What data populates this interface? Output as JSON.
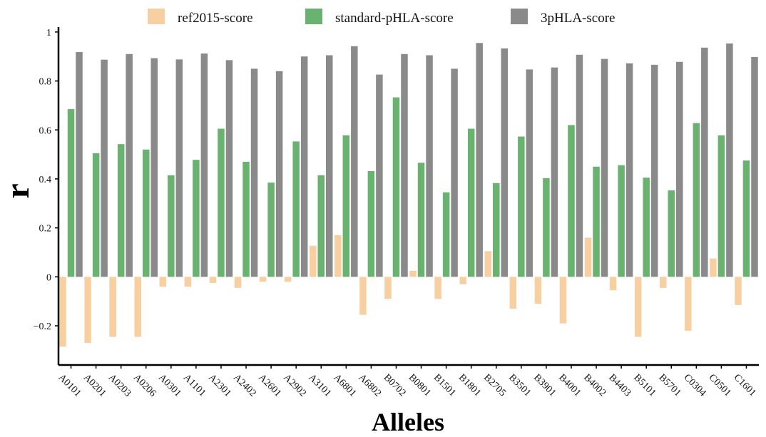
{
  "colors": {
    "ref2015-score": "#f7cfa0",
    "standard-pHLA-score": "#6ab26f",
    "3pHLA-score": "#8a8a8a",
    "axis": "#000000"
  },
  "chart_data": {
    "type": "bar",
    "xlabel": "Alleles",
    "ylabel": "r",
    "ylim": [
      -0.36,
      1.02
    ],
    "yticks": [
      -0.2,
      0,
      0.2,
      0.4,
      0.6,
      0.8,
      1
    ],
    "ytick_labels": [
      "−0.2",
      "0",
      "0.2",
      "0.4",
      "0.6",
      "0.8",
      "1"
    ],
    "legend_position": "top",
    "grid": false,
    "categories": [
      "A0101",
      "A0201",
      "A0203",
      "A0206",
      "A0301",
      "A1101",
      "A2301",
      "A2402",
      "A2601",
      "A2902",
      "A3101",
      "A6801",
      "A6802",
      "B0702",
      "B0801",
      "B1501",
      "B1801",
      "B2705",
      "B3501",
      "B3901",
      "B4001",
      "B4002",
      "B4403",
      "B5101",
      "B5701",
      "C0304",
      "C0501",
      "C1601"
    ],
    "series": [
      {
        "name": "ref2015-score",
        "values": [
          -0.285,
          -0.27,
          -0.245,
          -0.245,
          -0.04,
          -0.04,
          -0.025,
          -0.045,
          -0.02,
          -0.02,
          0.127,
          0.17,
          -0.155,
          -0.09,
          0.025,
          -0.09,
          -0.03,
          0.105,
          -0.13,
          -0.11,
          -0.19,
          0.16,
          -0.055,
          -0.245,
          -0.045,
          -0.22,
          0.075,
          -0.115
        ]
      },
      {
        "name": "standard-pHLA-score",
        "values": [
          0.685,
          0.505,
          0.542,
          0.52,
          0.415,
          0.478,
          0.605,
          0.47,
          0.385,
          0.553,
          0.415,
          0.578,
          0.432,
          0.733,
          0.466,
          0.345,
          0.605,
          0.383,
          0.573,
          0.403,
          0.62,
          0.45,
          0.456,
          0.405,
          0.353,
          0.628,
          0.578,
          0.475
        ]
      },
      {
        "name": "3pHLA-score",
        "values": [
          0.918,
          0.887,
          0.91,
          0.893,
          0.888,
          0.912,
          0.885,
          0.85,
          0.84,
          0.9,
          0.905,
          0.942,
          0.826,
          0.91,
          0.905,
          0.85,
          0.955,
          0.933,
          0.847,
          0.855,
          0.907,
          0.89,
          0.872,
          0.866,
          0.878,
          0.936,
          0.953,
          0.898
        ]
      }
    ]
  }
}
